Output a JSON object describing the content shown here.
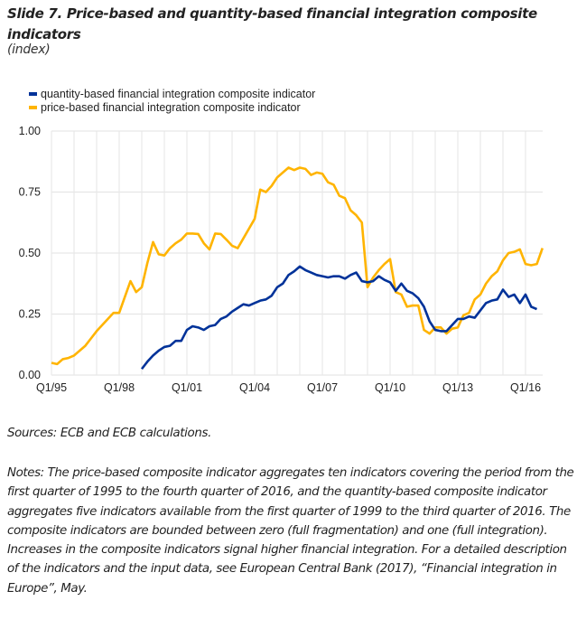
{
  "header": {
    "title": "Slide 7. Price-based and quantity-based financial integration composite indicators",
    "subtitle": "(index)"
  },
  "legend": [
    {
      "label": "quantity-based financial integration composite indicator",
      "color": "#003299"
    },
    {
      "label": "price-based financial integration composite indicator",
      "color": "#FFB400"
    }
  ],
  "chart_data": {
    "type": "line",
    "title": "Slide 7. Price-based and quantity-based financial integration composite indicators",
    "subtitle": "(index)",
    "xlabel": "",
    "ylabel": "",
    "x_start": "Q1/95",
    "x_end": "Q4/16",
    "x_frequency": "quarterly",
    "x_tick_labels": [
      "Q1/95",
      "Q1/98",
      "Q1/01",
      "Q1/04",
      "Q1/07",
      "Q1/10",
      "Q1/13",
      "Q1/16"
    ],
    "x_tick_quarter_index": [
      0,
      12,
      24,
      36,
      48,
      60,
      72,
      84
    ],
    "ylim": [
      0,
      1
    ],
    "y_ticks": [
      "0.00",
      "0.25",
      "0.50",
      "0.75",
      "1.00"
    ],
    "y_tick_values": [
      0,
      0.25,
      0.5,
      0.75,
      1.0
    ],
    "grid": true,
    "legend_position": "top-left",
    "series": [
      {
        "name": "quantity-based financial integration composite indicator",
        "color": "#003299",
        "start_quarter_index": 16,
        "start_label": "Q1/99",
        "values": [
          0.025,
          0.055,
          0.08,
          0.1,
          0.115,
          0.12,
          0.14,
          0.14,
          0.185,
          0.2,
          0.195,
          0.185,
          0.2,
          0.205,
          0.23,
          0.24,
          0.26,
          0.275,
          0.29,
          0.285,
          0.295,
          0.305,
          0.31,
          0.325,
          0.36,
          0.375,
          0.41,
          0.425,
          0.445,
          0.43,
          0.42,
          0.41,
          0.405,
          0.4,
          0.405,
          0.405,
          0.395,
          0.41,
          0.42,
          0.385,
          0.38,
          0.385,
          0.405,
          0.39,
          0.38,
          0.345,
          0.375,
          0.345,
          0.335,
          0.315,
          0.28,
          0.22,
          0.185,
          0.18,
          0.18,
          0.205,
          0.23,
          0.23,
          0.24,
          0.235,
          0.265,
          0.295,
          0.305,
          0.31,
          0.35,
          0.32,
          0.33,
          0.295,
          0.33,
          0.28,
          0.27
        ]
      },
      {
        "name": "price-based financial integration composite indicator",
        "color": "#FFB400",
        "start_quarter_index": 0,
        "start_label": "Q1/95",
        "values": [
          0.05,
          0.045,
          0.065,
          0.07,
          0.08,
          0.1,
          0.12,
          0.15,
          0.18,
          0.205,
          0.23,
          0.255,
          0.255,
          0.32,
          0.385,
          0.34,
          0.36,
          0.46,
          0.545,
          0.495,
          0.49,
          0.52,
          0.54,
          0.555,
          0.58,
          0.58,
          0.578,
          0.54,
          0.515,
          0.58,
          0.578,
          0.555,
          0.53,
          0.52,
          0.56,
          0.6,
          0.64,
          0.76,
          0.75,
          0.775,
          0.81,
          0.83,
          0.85,
          0.84,
          0.85,
          0.845,
          0.82,
          0.83,
          0.825,
          0.79,
          0.78,
          0.735,
          0.725,
          0.675,
          0.655,
          0.625,
          0.36,
          0.4,
          0.43,
          0.455,
          0.475,
          0.34,
          0.33,
          0.28,
          0.285,
          0.285,
          0.185,
          0.17,
          0.195,
          0.195,
          0.17,
          0.19,
          0.195,
          0.245,
          0.255,
          0.31,
          0.33,
          0.375,
          0.405,
          0.425,
          0.47,
          0.5,
          0.505,
          0.515,
          0.455,
          0.45,
          0.455,
          0.52
        ]
      }
    ]
  },
  "footer": {
    "sources": "Sources: ECB and ECB calculations.",
    "notes": "Notes: The price-based composite indicator aggregates ten indicators covering the period from the first quarter of 1995 to the fourth quarter of 2016, and the quantity-based composite indicator aggregates five indicators available from the first quarter of 1999 to the third quarter of 2016. The composite indicators are bounded between zero (full fragmentation) and one (full integration). Increases in the composite indicators signal higher financial integration. For a detailed description of the indicators and the input data, see European Central Bank (2017), “Financial integration in Europe”, May."
  }
}
